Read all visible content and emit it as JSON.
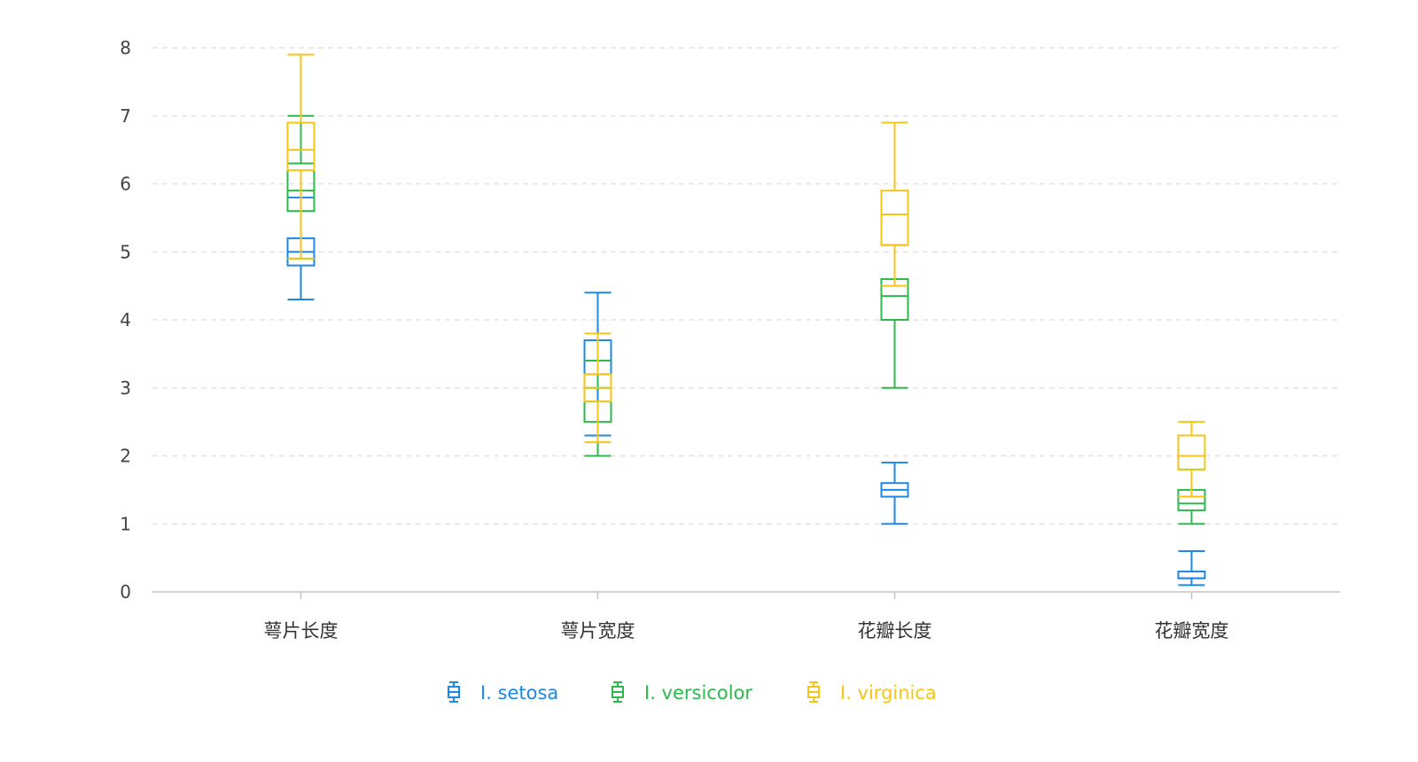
{
  "chart_data": {
    "type": "boxplot",
    "categories": [
      "萼片长度",
      "萼片宽度",
      "花瓣长度",
      "花瓣宽度"
    ],
    "ylim": [
      0,
      8
    ],
    "yticks": [
      0,
      1,
      2,
      3,
      4,
      5,
      6,
      7,
      8
    ],
    "grid": true,
    "legend_position": "bottom-center",
    "series": [
      {
        "name": "I. setosa",
        "color": "#1e88e5",
        "boxes": [
          {
            "min": 4.3,
            "q1": 4.8,
            "median": 5.0,
            "q3": 5.2,
            "max": 5.8
          },
          {
            "min": 2.3,
            "q1": 3.2,
            "median": 3.4,
            "q3": 3.7,
            "max": 4.4
          },
          {
            "min": 1.0,
            "q1": 1.4,
            "median": 1.5,
            "q3": 1.6,
            "max": 1.9
          },
          {
            "min": 0.1,
            "q1": 0.2,
            "median": 0.2,
            "q3": 0.3,
            "max": 0.6
          }
        ]
      },
      {
        "name": "I. versicolor",
        "color": "#2db84d",
        "boxes": [
          {
            "min": 4.9,
            "q1": 5.6,
            "median": 5.9,
            "q3": 6.3,
            "max": 7.0
          },
          {
            "min": 2.0,
            "q1": 2.5,
            "median": 2.8,
            "q3": 3.0,
            "max": 3.4
          },
          {
            "min": 3.0,
            "q1": 4.0,
            "median": 4.35,
            "q3": 4.6,
            "max": 5.1
          },
          {
            "min": 1.0,
            "q1": 1.2,
            "median": 1.3,
            "q3": 1.5,
            "max": 1.8
          }
        ]
      },
      {
        "name": "I. virginica",
        "color": "#f5c518",
        "boxes": [
          {
            "min": 4.9,
            "q1": 6.2,
            "median": 6.5,
            "q3": 6.9,
            "max": 7.9
          },
          {
            "min": 2.2,
            "q1": 2.8,
            "median": 3.0,
            "q3": 3.2,
            "max": 3.8
          },
          {
            "min": 4.5,
            "q1": 5.1,
            "median": 5.55,
            "q3": 5.9,
            "max": 6.9
          },
          {
            "min": 1.4,
            "q1": 1.8,
            "median": 2.0,
            "q3": 2.3,
            "max": 2.5
          }
        ]
      }
    ]
  }
}
